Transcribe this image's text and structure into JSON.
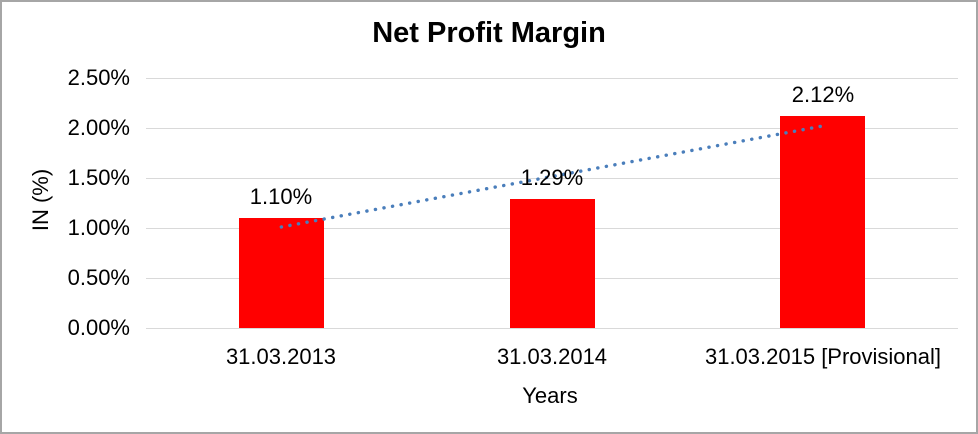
{
  "chart_data": {
    "type": "bar",
    "title": "Net Profit Margin",
    "xlabel": "Years",
    "ylabel": "IN (%)",
    "categories": [
      "31.03.2013",
      "31.03.2014",
      "31.03.2015 [Provisional]"
    ],
    "values": [
      1.1,
      1.29,
      2.12
    ],
    "data_labels": [
      "1.10%",
      "1.29%",
      "2.12%"
    ],
    "y_ticks": [
      {
        "value": 0.0,
        "label": "0.00%"
      },
      {
        "value": 0.5,
        "label": "0.50%"
      },
      {
        "value": 1.0,
        "label": "1.00%"
      },
      {
        "value": 1.5,
        "label": "1.50%"
      },
      {
        "value": 2.0,
        "label": "2.00%"
      },
      {
        "value": 2.5,
        "label": "2.50%"
      }
    ],
    "ylim": [
      0,
      2.5
    ],
    "grid": true,
    "legend": false,
    "colors": {
      "bar": "#FF0000",
      "trendline": "#4A7EBB",
      "gridline": "#D9D9D9",
      "text": "#000000",
      "border": "#A6A6A6"
    },
    "trendline": {
      "type": "linear",
      "style": "dotted",
      "start_value": 1.01,
      "end_value": 2.02
    }
  }
}
